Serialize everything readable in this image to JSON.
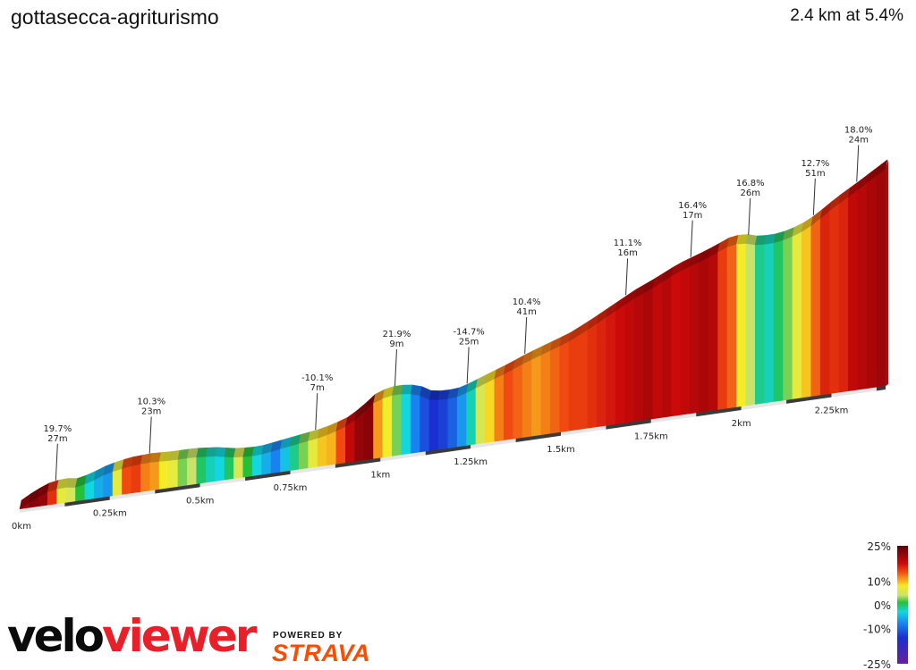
{
  "header": {
    "title": "gottasecca-agriturismo",
    "summary": "2.4 km at 5.4%"
  },
  "branding": {
    "logo_part1": "velo",
    "logo_part2": "viewer",
    "powered_by": "POWERED BY",
    "strava": "STRAVA",
    "colors": {
      "velo": "#0b0b0b",
      "viewer": "#e8202a",
      "strava": "#fc4c02"
    }
  },
  "chart_data": {
    "type": "area",
    "title": "gottasecca-agriturismo",
    "subtitle": "2.4 km at 5.4%",
    "x_unit": "km",
    "x_ticks": [
      "0km",
      "0.25km",
      "0.5km",
      "0.75km",
      "1km",
      "1.25km",
      "1.5km",
      "1.75km",
      "2km",
      "2.25km"
    ],
    "x_tick_values": [
      0,
      0.25,
      0.5,
      0.75,
      1.0,
      1.25,
      1.5,
      1.75,
      2.0,
      2.25
    ],
    "xlim": [
      0,
      2.4
    ],
    "elevation_profile_m": {
      "x": [
        0,
        0.02,
        0.05,
        0.08,
        0.12,
        0.16,
        0.2,
        0.24,
        0.3,
        0.36,
        0.42,
        0.48,
        0.54,
        0.6,
        0.66,
        0.72,
        0.78,
        0.84,
        0.9,
        0.94,
        0.98,
        1.02,
        1.06,
        1.1,
        1.14,
        1.18,
        1.22,
        1.26,
        1.3,
        1.35,
        1.4,
        1.46,
        1.52,
        1.58,
        1.64,
        1.7,
        1.76,
        1.82,
        1.88,
        1.92,
        1.96,
        2.0,
        2.04,
        2.08,
        2.12,
        2.16,
        2.2,
        2.26,
        2.32,
        2.4
      ],
      "y": [
        0,
        4,
        9,
        13,
        15,
        13,
        17,
        22,
        26,
        27,
        26,
        26,
        24,
        20,
        19,
        22,
        25,
        28,
        34,
        42,
        53,
        58,
        58,
        56,
        48,
        47,
        48,
        53,
        58,
        64,
        71,
        78,
        85,
        95,
        106,
        117,
        126,
        136,
        143,
        148,
        154,
        156,
        152,
        151,
        153,
        157,
        164,
        178,
        190,
        207
      ]
    },
    "gradient_markers": [
      {
        "km": 0.1,
        "grade": "19.7%",
        "length": "27m"
      },
      {
        "km": 0.36,
        "grade": "10.3%",
        "length": "23m"
      },
      {
        "km": 0.82,
        "grade": "-10.1%",
        "length": "7m"
      },
      {
        "km": 1.04,
        "grade": "21.9%",
        "length": "9m"
      },
      {
        "km": 1.24,
        "grade": "-14.7%",
        "length": "25m"
      },
      {
        "km": 1.4,
        "grade": "10.4%",
        "length": "41m"
      },
      {
        "km": 1.68,
        "grade": "11.1%",
        "length": "16m"
      },
      {
        "km": 1.86,
        "grade": "16.4%",
        "length": "17m"
      },
      {
        "km": 2.02,
        "grade": "16.8%",
        "length": "26m"
      },
      {
        "km": 2.2,
        "grade": "12.7%",
        "length": "51m"
      },
      {
        "km": 2.32,
        "grade": "18.0%",
        "length": "24m"
      }
    ],
    "segment_gradients_pct": [
      19,
      21,
      20,
      12,
      2,
      1,
      -2,
      -6,
      -8,
      -9,
      2,
      10,
      11,
      8,
      7,
      3,
      2,
      -1,
      0,
      -3,
      -5,
      -6,
      -3,
      1,
      -2,
      -6,
      -8,
      -10,
      -7,
      -4,
      -1,
      2,
      5,
      6,
      10,
      16,
      20,
      21,
      7,
      3,
      -1,
      -6,
      -10,
      -13,
      -15,
      -14,
      -12,
      -9,
      -5,
      1,
      4,
      8,
      10,
      9,
      8,
      7,
      8,
      9,
      10,
      11,
      11,
      12,
      13,
      14,
      15,
      16,
      17,
      18,
      16,
      17,
      15,
      16,
      17,
      18,
      17,
      11,
      9,
      3,
      0,
      -4,
      -5,
      -3,
      -1,
      2,
      5,
      9,
      13,
      12,
      13,
      16,
      17,
      18,
      19
    ],
    "legend": {
      "type": "colorbar",
      "labels": [
        "25%",
        "10%",
        "0%",
        "-10%",
        "-25%"
      ],
      "values": [
        25,
        10,
        0,
        -10,
        -25
      ],
      "placement": "bottom-right"
    }
  }
}
